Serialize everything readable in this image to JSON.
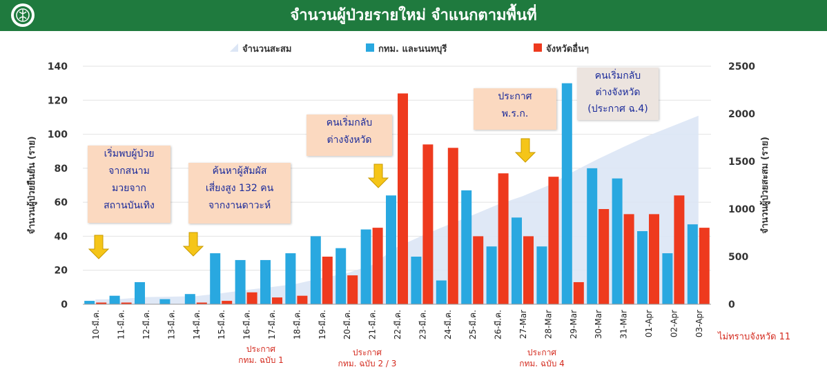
{
  "header": {
    "title": "จำนวนผู้ป่วยรายใหม่ จำแนกตามพื้นที่",
    "logo_icon": "ministry-seal-icon"
  },
  "colors": {
    "header_bg": "#1f7a3e",
    "bangkok": "#29a8e0",
    "other": "#ee3a1e",
    "cumulative": "#dce6f5"
  },
  "chart_data": {
    "type": "bar",
    "categories": [
      "10-มี.ค.",
      "11-มี.ค.",
      "12-มี.ค.",
      "13-มี.ค.",
      "14-มี.ค.",
      "15-มี.ค.",
      "16-มี.ค.",
      "17-มี.ค.",
      "18-มี.ค.",
      "19-มี.ค.",
      "20-มี.ค.",
      "21-มี.ค.",
      "22-มี.ค.",
      "23-มี.ค.",
      "24-มี.ค.",
      "25-มี.ค.",
      "26-มี.ค.",
      "27-Mar",
      "28-Mar",
      "29-Mar",
      "30-Mar",
      "31-Mar",
      "01-Apr",
      "02-Apr",
      "03-Apr"
    ],
    "series": [
      {
        "name": "กทม. และนนทบุรี",
        "type": "bar",
        "axis": "left",
        "color": "#29a8e0",
        "values": [
          2,
          5,
          13,
          3,
          6,
          30,
          26,
          26,
          30,
          40,
          33,
          44,
          64,
          28,
          14,
          67,
          34,
          51,
          34,
          130,
          80,
          74,
          43,
          30,
          47
        ]
      },
      {
        "name": "จังหวัดอื่นๆ",
        "type": "bar",
        "axis": "left",
        "color": "#ee3a1e",
        "values": [
          1,
          1,
          0,
          0,
          1,
          2,
          7,
          4,
          5,
          28,
          17,
          45,
          124,
          94,
          92,
          40,
          77,
          40,
          75,
          13,
          56,
          53,
          53,
          64,
          45
        ]
      },
      {
        "name": "จำนวนสะสม",
        "type": "area",
        "axis": "right",
        "color": "#dce6f5",
        "values": [
          50,
          55,
          75,
          80,
          85,
          115,
          150,
          180,
          215,
          275,
          325,
          410,
          600,
          720,
          830,
          935,
          1045,
          1135,
          1245,
          1390,
          1525,
          1650,
          1770,
          1875,
          1980
        ]
      }
    ],
    "ylabel": "จำนวนผู้ป่วยยืนยัน (ราย)",
    "y2label": "จำนวนผู้ป่วยสะสม (ราย)",
    "ylim": [
      0,
      140
    ],
    "yticks": [
      0,
      20,
      40,
      60,
      80,
      100,
      120,
      140
    ],
    "y2lim": [
      0,
      2500
    ],
    "y2ticks": [
      0,
      500,
      1000,
      1500,
      2000,
      2500
    ],
    "legend_position": "top",
    "grid": true
  },
  "annotations": {
    "a1": [
      "เริ่มพบผู้ป่วย",
      "จากสนาม",
      "มวยจาก",
      "สถานบันเทิง"
    ],
    "a2": [
      "ค้นหาผู้สัมผัส",
      "เสี่ยงสูง 132 คน",
      "จากงานดาวะห์"
    ],
    "a3": [
      "คนเริ่มกลับ",
      "ต่างจังหวัด"
    ],
    "a4": [
      "ประกาศ",
      "พ.ร.ก."
    ],
    "a5": [
      "คนเริ่มกลับ",
      "ต่างจังหวัด",
      "(ประกาศ ฉ.4)"
    ]
  },
  "notes": {
    "n1": [
      "ประกาศ",
      "กทม. ฉบับ 1"
    ],
    "n2": [
      "ประกาศ",
      "กทม. ฉบับ 2 / 3"
    ],
    "n3": [
      "ประกาศ",
      "กทม. ฉบับ 4"
    ]
  },
  "footer": {
    "unknown_province": "ไม่ทราบจังหวัด 11"
  }
}
